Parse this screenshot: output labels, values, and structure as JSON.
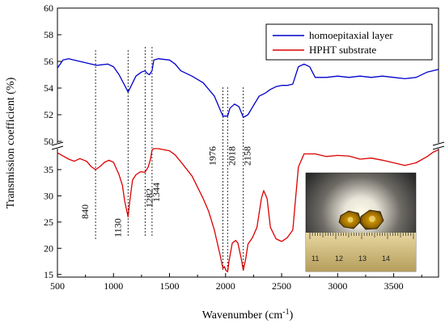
{
  "chart_data": {
    "type": "line",
    "xlabel": "Wavenumber (cm",
    "xlabel_sup": "-1",
    "xlabel_close": ")",
    "ylabel": "Transmission coefficient (%)",
    "xlim": [
      500,
      3900
    ],
    "x_ticks": [
      "500",
      "1000",
      "1500",
      "2000",
      "2500",
      "3000",
      "3500"
    ],
    "upper_panel": {
      "ylim": [
        50,
        60
      ],
      "y_ticks": [
        "50",
        "52",
        "54",
        "56",
        "58",
        "60"
      ]
    },
    "lower_panel": {
      "ylim": [
        14.5,
        39
      ],
      "y_ticks": [
        "15",
        "20",
        "25",
        "30",
        "35"
      ]
    },
    "series": [
      {
        "name": "homoepitaxial layer",
        "color": "#0000cc",
        "panel": "upper",
        "points": [
          [
            500,
            55.5
          ],
          [
            550,
            56.1
          ],
          [
            600,
            56.2
          ],
          [
            700,
            56.0
          ],
          [
            800,
            55.8
          ],
          [
            850,
            55.7
          ],
          [
            950,
            55.8
          ],
          [
            1000,
            55.6
          ],
          [
            1050,
            55.0
          ],
          [
            1100,
            54.2
          ],
          [
            1130,
            53.7
          ],
          [
            1160,
            54.2
          ],
          [
            1200,
            54.9
          ],
          [
            1250,
            55.2
          ],
          [
            1282,
            55.3
          ],
          [
            1300,
            55.1
          ],
          [
            1320,
            55.0
          ],
          [
            1344,
            55.3
          ],
          [
            1360,
            56.1
          ],
          [
            1400,
            56.2
          ],
          [
            1500,
            56.1
          ],
          [
            1550,
            55.8
          ],
          [
            1600,
            55.3
          ],
          [
            1700,
            54.9
          ],
          [
            1800,
            54.4
          ],
          [
            1900,
            53.4
          ],
          [
            1950,
            52.4
          ],
          [
            1976,
            51.9
          ],
          [
            2000,
            51.9
          ],
          [
            2018,
            51.9
          ],
          [
            2040,
            52.5
          ],
          [
            2080,
            52.8
          ],
          [
            2120,
            52.6
          ],
          [
            2158,
            51.8
          ],
          [
            2200,
            52.0
          ],
          [
            2250,
            52.7
          ],
          [
            2300,
            53.4
          ],
          [
            2350,
            53.6
          ],
          [
            2400,
            53.9
          ],
          [
            2450,
            54.1
          ],
          [
            2500,
            54.2
          ],
          [
            2550,
            54.2
          ],
          [
            2600,
            54.3
          ],
          [
            2650,
            55.6
          ],
          [
            2700,
            55.8
          ],
          [
            2750,
            55.6
          ],
          [
            2800,
            54.8
          ],
          [
            2900,
            54.8
          ],
          [
            3000,
            54.9
          ],
          [
            3100,
            54.8
          ],
          [
            3200,
            54.9
          ],
          [
            3300,
            54.8
          ],
          [
            3400,
            54.9
          ],
          [
            3500,
            54.8
          ],
          [
            3600,
            54.7
          ],
          [
            3700,
            54.8
          ],
          [
            3800,
            55.2
          ],
          [
            3900,
            55.4
          ]
        ]
      },
      {
        "name": "HPHT substrate",
        "color": "#dd0000",
        "panel": "lower",
        "points": [
          [
            500,
            38.2
          ],
          [
            550,
            37.6
          ],
          [
            600,
            37.0
          ],
          [
            650,
            36.6
          ],
          [
            700,
            37.1
          ],
          [
            760,
            36.6
          ],
          [
            800,
            35.6
          ],
          [
            840,
            35.0
          ],
          [
            880,
            35.6
          ],
          [
            920,
            36.4
          ],
          [
            960,
            36.8
          ],
          [
            1000,
            36.4
          ],
          [
            1050,
            34.0
          ],
          [
            1080,
            32.0
          ],
          [
            1100,
            29.0
          ],
          [
            1115,
            27.5
          ],
          [
            1130,
            26.0
          ],
          [
            1145,
            29.0
          ],
          [
            1170,
            33.0
          ],
          [
            1200,
            34.0
          ],
          [
            1240,
            34.6
          ],
          [
            1282,
            34.5
          ],
          [
            1310,
            35.5
          ],
          [
            1330,
            37.0
          ],
          [
            1344,
            38.7
          ],
          [
            1360,
            39.0
          ],
          [
            1400,
            39.0
          ],
          [
            1500,
            38.6
          ],
          [
            1550,
            37.8
          ],
          [
            1600,
            36.5
          ],
          [
            1700,
            33.8
          ],
          [
            1800,
            29.5
          ],
          [
            1850,
            27.0
          ],
          [
            1900,
            23.5
          ],
          [
            1950,
            18.8
          ],
          [
            1976,
            16.2
          ],
          [
            1990,
            16.5
          ],
          [
            2000,
            15.9
          ],
          [
            2018,
            15.5
          ],
          [
            2030,
            17.5
          ],
          [
            2060,
            21.0
          ],
          [
            2090,
            21.5
          ],
          [
            2110,
            21.0
          ],
          [
            2140,
            18.0
          ],
          [
            2158,
            15.8
          ],
          [
            2180,
            18.0
          ],
          [
            2200,
            20.8
          ],
          [
            2240,
            22.0
          ],
          [
            2280,
            24.0
          ],
          [
            2320,
            29.5
          ],
          [
            2340,
            31.0
          ],
          [
            2370,
            29.5
          ],
          [
            2400,
            24.0
          ],
          [
            2450,
            21.8
          ],
          [
            2500,
            21.3
          ],
          [
            2550,
            22.0
          ],
          [
            2600,
            23.5
          ],
          [
            2650,
            35.5
          ],
          [
            2700,
            38.0
          ],
          [
            2800,
            38.0
          ],
          [
            2900,
            37.5
          ],
          [
            3000,
            37.7
          ],
          [
            3100,
            37.6
          ],
          [
            3200,
            37.0
          ],
          [
            3300,
            37.2
          ],
          [
            3400,
            36.8
          ],
          [
            3500,
            36.3
          ],
          [
            3600,
            35.8
          ],
          [
            3700,
            36.3
          ],
          [
            3800,
            37.5
          ],
          [
            3850,
            38.3
          ],
          [
            3900,
            38.8
          ]
        ]
      }
    ],
    "annotations": [
      {
        "label": "840",
        "x": 840
      },
      {
        "label": "1130",
        "x": 1130
      },
      {
        "label": "1282",
        "x": 1282
      },
      {
        "label": "1344",
        "x": 1344
      },
      {
        "label": "1976",
        "x": 1976
      },
      {
        "label": "2018",
        "x": 2018
      },
      {
        "label": "2158",
        "x": 2158
      }
    ],
    "legend_position": "top-right",
    "inset": {
      "ruler_numbers": [
        "11",
        "12",
        "13",
        "14"
      ]
    }
  }
}
